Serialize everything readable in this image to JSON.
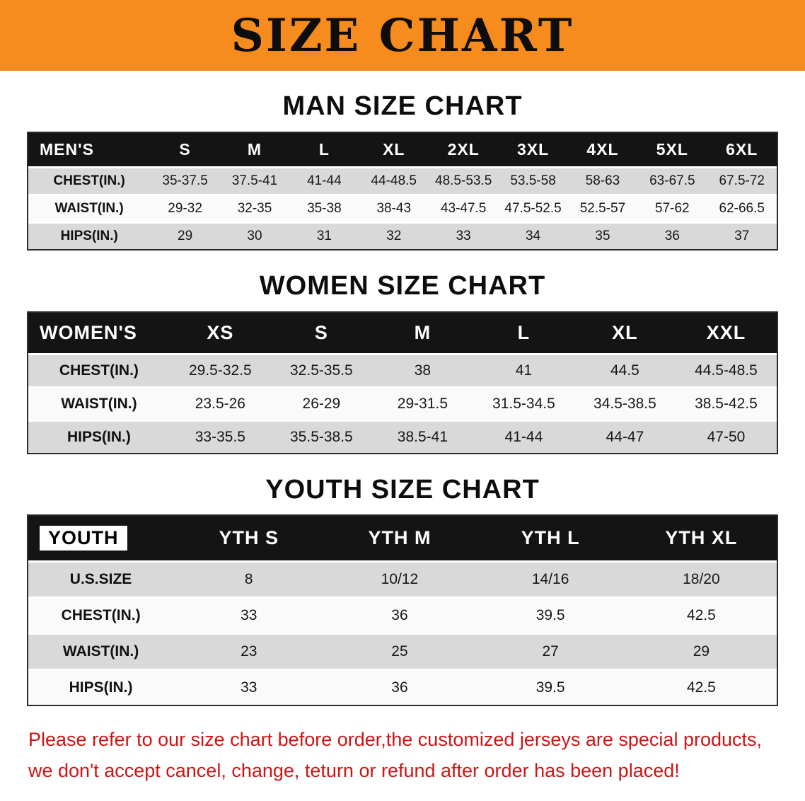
{
  "banner": {
    "title": "SIZE CHART",
    "bg_color": "#f68b1e"
  },
  "chart_data": [
    {
      "type": "table",
      "title": "MAN SIZE CHART",
      "columns": [
        "MEN'S",
        "S",
        "M",
        "L",
        "XL",
        "2XL",
        "3XL",
        "4XL",
        "5XL",
        "6XL"
      ],
      "rows": [
        {
          "label": "CHEST(IN.)",
          "values": [
            "35-37.5",
            "37.5-41",
            "41-44",
            "44-48.5",
            "48.5-53.5",
            "53.5-58",
            "58-63",
            "63-67.5",
            "67.5-72"
          ]
        },
        {
          "label": "WAIST(IN.)",
          "values": [
            "29-32",
            "32-35",
            "35-38",
            "38-43",
            "43-47.5",
            "47.5-52.5",
            "52.5-57",
            "57-62",
            "62-66.5"
          ]
        },
        {
          "label": "HIPS(IN.)",
          "values": [
            "29",
            "30",
            "31",
            "32",
            "33",
            "34",
            "35",
            "36",
            "37"
          ]
        }
      ]
    },
    {
      "type": "table",
      "title": "WOMEN SIZE CHART",
      "columns": [
        "WOMEN'S",
        "XS",
        "S",
        "M",
        "L",
        "XL",
        "XXL"
      ],
      "rows": [
        {
          "label": "CHEST(IN.)",
          "values": [
            "29.5-32.5",
            "32.5-35.5",
            "38",
            "41",
            "44.5",
            "44.5-48.5"
          ]
        },
        {
          "label": "WAIST(IN.)",
          "values": [
            "23.5-26",
            "26-29",
            "29-31.5",
            "31.5-34.5",
            "34.5-38.5",
            "38.5-42.5"
          ]
        },
        {
          "label": "HIPS(IN.)",
          "values": [
            "33-35.5",
            "35.5-38.5",
            "38.5-41",
            "41-44",
            "44-47",
            "47-50"
          ]
        }
      ]
    },
    {
      "type": "table",
      "title": "YOUTH SIZE CHART",
      "columns": [
        "YOUTH",
        "YTH S",
        "YTH M",
        "YTH L",
        "YTH XL"
      ],
      "rows": [
        {
          "label": "U.S.SIZE",
          "values": [
            "8",
            "10/12",
            "14/16",
            "18/20"
          ]
        },
        {
          "label": "CHEST(IN.)",
          "values": [
            "33",
            "36",
            "39.5",
            "42.5"
          ]
        },
        {
          "label": "WAIST(IN.)",
          "values": [
            "23",
            "25",
            "27",
            "29"
          ]
        },
        {
          "label": "HIPS(IN.)",
          "values": [
            "33",
            "36",
            "39.5",
            "42.5"
          ]
        }
      ]
    }
  ],
  "disclaimer": {
    "color": "#cd1515",
    "line1": "Please refer to our size chart before order,the customized jerseys are special products,",
    "line2": "we don't accept cancel, change, teturn or refund after order has been placed!"
  }
}
